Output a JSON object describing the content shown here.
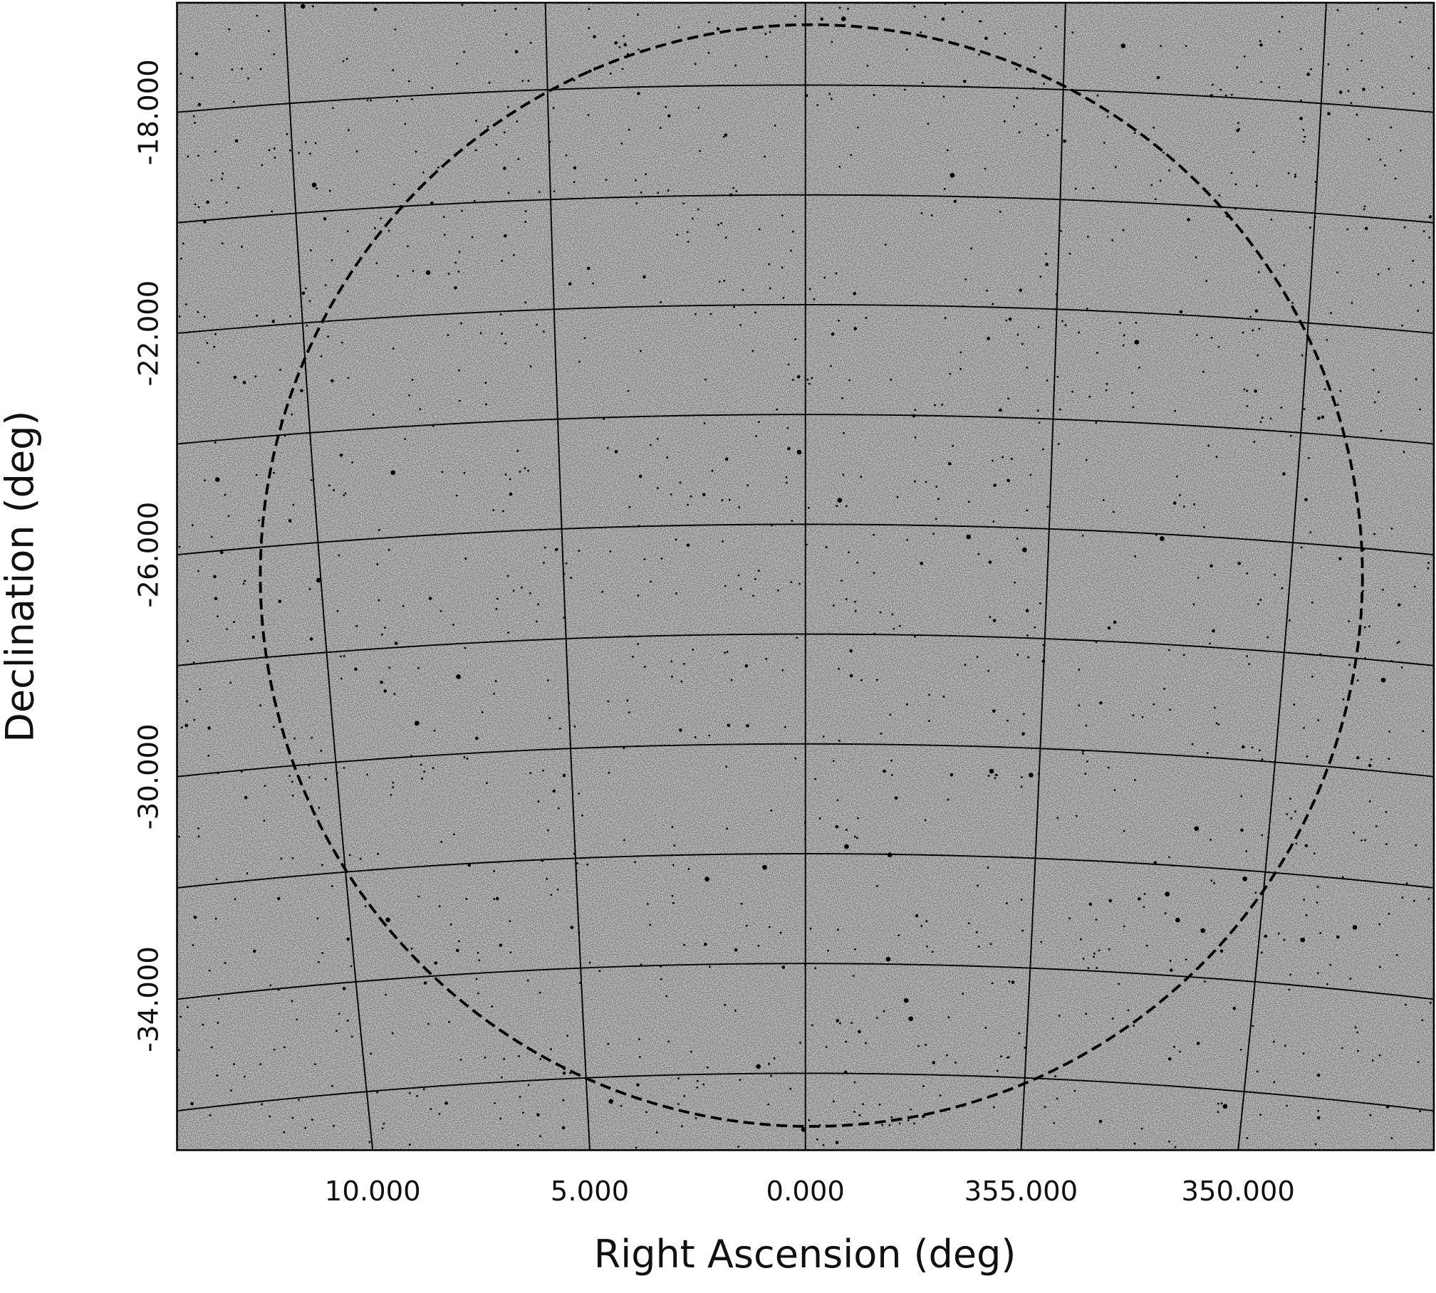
{
  "chart_data": {
    "type": "sky-image",
    "x_label": "Right Ascension (deg)",
    "y_label": "Declination (deg)",
    "xlim": [
      13.0,
      347.0
    ],
    "ylim": [
      -37.4,
      -16.5
    ],
    "xticks": [
      {
        "value": 10,
        "label": "10.000"
      },
      {
        "value": 5,
        "label": "5.000"
      },
      {
        "value": 0,
        "label": "0.000"
      },
      {
        "value": 355,
        "label": "355.000"
      },
      {
        "value": 350,
        "label": "350.000"
      }
    ],
    "yticks": [
      {
        "value": -18,
        "label": "-18.000"
      },
      {
        "value": -22,
        "label": "-22.000"
      },
      {
        "value": -26,
        "label": "-26.000"
      },
      {
        "value": -30,
        "label": "-30.000"
      },
      {
        "value": -34,
        "label": "-34.000"
      }
    ],
    "ygrid": [
      -20,
      -24,
      -28,
      -32,
      -36
    ],
    "grid": true
  }
}
